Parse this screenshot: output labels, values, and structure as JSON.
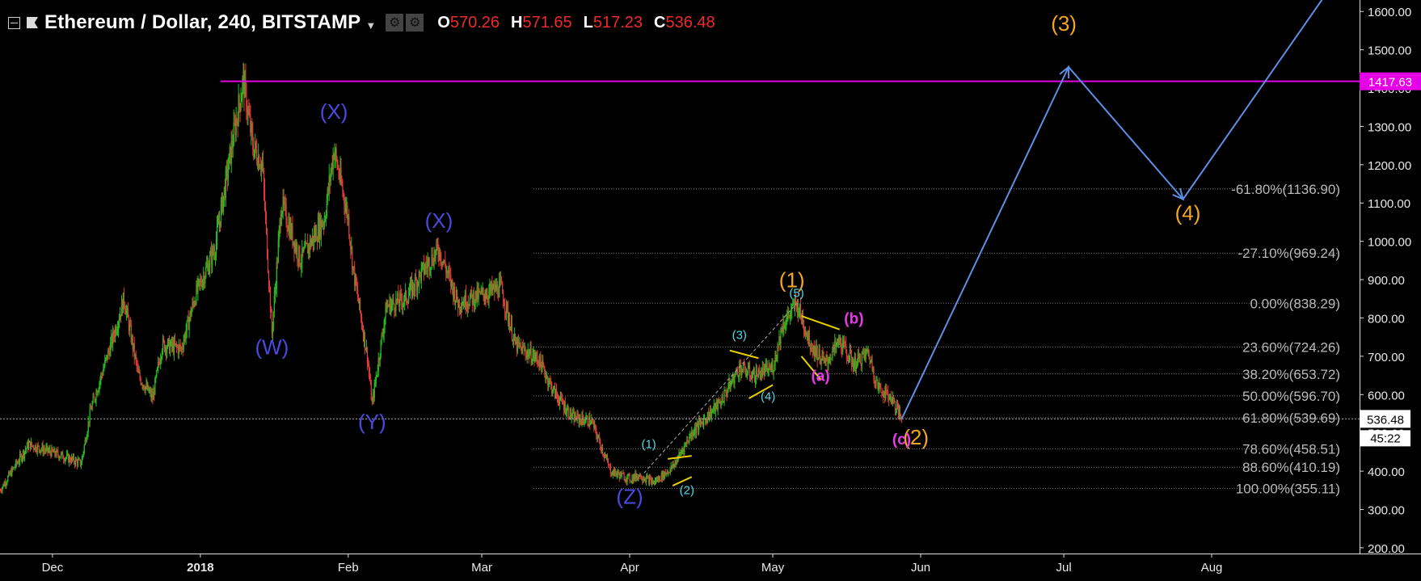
{
  "header": {
    "title": "Ethereum / Dollar, 240, BITSTAMP",
    "ohlc": [
      {
        "key": "O",
        "value": "570.26"
      },
      {
        "key": "H",
        "value": "571.65"
      },
      {
        "key": "L",
        "value": "517.23"
      },
      {
        "key": "C",
        "value": "536.48"
      }
    ]
  },
  "colors": {
    "background": "#000000",
    "up_candle": "#22c11d",
    "down_candle": "#e23a3a",
    "resistance": "#e600e6",
    "projection": "#5d8fe6",
    "wxy_labels": "#4a4ae0",
    "primary_wave": "#f5a623",
    "minor_wave": "#55d8ea",
    "abc_wave": "#e63ae6",
    "triangle": "#e8d000",
    "fib_text": "#b9b9b9"
  },
  "chart_data": {
    "type": "candlestick",
    "symbol": "Ethereum / Dollar",
    "interval": "240",
    "exchange": "BITSTAMP",
    "y_axis": {
      "side": "right",
      "ticks": [
        "200.00",
        "300.00",
        "400.00",
        "500.00",
        "600.00",
        "700.00",
        "800.00",
        "900.00",
        "1000.00",
        "1100.00",
        "1200.00",
        "1300.00",
        "1400.00",
        "1500.00",
        "1600.00"
      ],
      "range": [
        185,
        1630
      ]
    },
    "x_axis": {
      "ticks": [
        {
          "label": "Dec",
          "date": "2017-12-01"
        },
        {
          "label": "2018",
          "date": "2018-01-01"
        },
        {
          "label": "Feb",
          "date": "2018-02-01"
        },
        {
          "label": "Mar",
          "date": "2018-03-01"
        },
        {
          "label": "Apr",
          "date": "2018-04-01"
        },
        {
          "label": "May",
          "date": "2018-05-01"
        },
        {
          "label": "Jun",
          "date": "2018-06-01"
        },
        {
          "label": "Jul",
          "date": "2018-07-01"
        },
        {
          "label": "Aug",
          "date": "2018-08-01"
        }
      ],
      "range": [
        "2017-11-20",
        "2018-09-01"
      ]
    },
    "price_path": [
      [
        "2017-11-20",
        350
      ],
      [
        "2017-11-26",
        470
      ],
      [
        "2017-12-03",
        440
      ],
      [
        "2017-12-07",
        420
      ],
      [
        "2017-12-09",
        560
      ],
      [
        "2017-12-13",
        720
      ],
      [
        "2017-12-16",
        850
      ],
      [
        "2017-12-19",
        650
      ],
      [
        "2017-12-22",
        590
      ],
      [
        "2017-12-24",
        730
      ],
      [
        "2017-12-28",
        720
      ],
      [
        "2017-12-31",
        860
      ],
      [
        "2018-01-04",
        980
      ],
      [
        "2018-01-08",
        1280
      ],
      [
        "2018-01-10",
        1420
      ],
      [
        "2018-01-12",
        1250
      ],
      [
        "2018-01-14",
        1200
      ],
      [
        "2018-01-16",
        760
      ],
      [
        "2018-01-18",
        1100
      ],
      [
        "2018-01-22",
        950
      ],
      [
        "2018-01-27",
        1060
      ],
      [
        "2018-01-29",
        1240
      ],
      [
        "2018-02-01",
        1060
      ],
      [
        "2018-02-02",
        930
      ],
      [
        "2018-02-05",
        700
      ],
      [
        "2018-02-06",
        575
      ],
      [
        "2018-02-09",
        830
      ],
      [
        "2018-02-13",
        850
      ],
      [
        "2018-02-17",
        930
      ],
      [
        "2018-02-20",
        980
      ],
      [
        "2018-02-24",
        840
      ],
      [
        "2018-03-01",
        860
      ],
      [
        "2018-03-05",
        880
      ],
      [
        "2018-03-08",
        730
      ],
      [
        "2018-03-13",
        690
      ],
      [
        "2018-03-16",
        610
      ],
      [
        "2018-03-20",
        540
      ],
      [
        "2018-03-24",
        530
      ],
      [
        "2018-03-28",
        400
      ],
      [
        "2018-04-01",
        380
      ],
      [
        "2018-04-03",
        390
      ],
      [
        "2018-04-06",
        370
      ],
      [
        "2018-04-10",
        410
      ],
      [
        "2018-04-14",
        500
      ],
      [
        "2018-04-20",
        580
      ],
      [
        "2018-04-24",
        670
      ],
      [
        "2018-04-27",
        650
      ],
      [
        "2018-05-01",
        670
      ],
      [
        "2018-05-03",
        780
      ],
      [
        "2018-05-06",
        838
      ],
      [
        "2018-05-09",
        730
      ],
      [
        "2018-05-12",
        680
      ],
      [
        "2018-05-15",
        740
      ],
      [
        "2018-05-18",
        680
      ],
      [
        "2018-05-21",
        710
      ],
      [
        "2018-05-23",
        620
      ],
      [
        "2018-05-26",
        590
      ],
      [
        "2018-05-28",
        536
      ]
    ],
    "horizontal_lines": [
      {
        "price": 1417.63,
        "label": "1417.63",
        "color": "#e600e6"
      },
      {
        "price": 536.48,
        "label": "536.48",
        "sublabel": "45:22",
        "style": "dotted"
      }
    ],
    "fibonacci_levels": [
      {
        "label": "-61.80%(1136.90)",
        "price": 1136.9
      },
      {
        "label": "-27.10%(969.24)",
        "price": 969.24
      },
      {
        "label": "0.00%(838.29)",
        "price": 838.29
      },
      {
        "label": "23.60%(724.26)",
        "price": 724.26
      },
      {
        "label": "38.20%(653.72)",
        "price": 653.72
      },
      {
        "label": "50.00%(596.70)",
        "price": 596.7
      },
      {
        "label": "61.80%(539.69)",
        "price": 539.69
      },
      {
        "label": "78.60%(458.51)",
        "price": 458.51
      },
      {
        "label": "88.60%(410.19)",
        "price": 410.19
      },
      {
        "label": "100.00%(355.11)",
        "price": 355.11
      }
    ],
    "wave_labels": [
      {
        "text": "(W)",
        "date": "2018-01-16",
        "price": 705,
        "group": "wxy"
      },
      {
        "text": "(X)",
        "date": "2018-01-29",
        "price": 1320,
        "group": "wxy"
      },
      {
        "text": "(Y)",
        "date": "2018-02-06",
        "price": 510,
        "group": "wxy"
      },
      {
        "text": "(X)",
        "date": "2018-02-20",
        "price": 1035,
        "group": "wxy"
      },
      {
        "text": "(Z)",
        "date": "2018-04-01",
        "price": 315,
        "group": "wxy"
      },
      {
        "text": "(1)",
        "date": "2018-05-05",
        "price": 880,
        "group": "primary"
      },
      {
        "text": "(2)",
        "date": "2018-05-31",
        "price": 470,
        "group": "primary"
      },
      {
        "text": "(3)",
        "date": "2018-07-01",
        "price": 1550,
        "group": "primary"
      },
      {
        "text": "(4)",
        "date": "2018-07-27",
        "price": 1055,
        "group": "primary"
      },
      {
        "text": "(1)",
        "date": "2018-04-05",
        "price": 460,
        "group": "minor"
      },
      {
        "text": "(2)",
        "date": "2018-04-13",
        "price": 340,
        "group": "minor"
      },
      {
        "text": "(3)",
        "date": "2018-04-24",
        "price": 745,
        "group": "minor"
      },
      {
        "text": "(4)",
        "date": "2018-04-30",
        "price": 585,
        "group": "minor"
      },
      {
        "text": "(5)",
        "date": "2018-05-06",
        "price": 855,
        "group": "minor"
      },
      {
        "text": "(a)",
        "date": "2018-05-11",
        "price": 635,
        "group": "abc"
      },
      {
        "text": "(b)",
        "date": "2018-05-18",
        "price": 785,
        "group": "abc"
      },
      {
        "text": "(c)",
        "date": "2018-05-28",
        "price": 470,
        "group": "abc"
      }
    ],
    "projection_path": [
      [
        "2018-05-28",
        536
      ],
      [
        "2018-07-02",
        1455
      ],
      [
        "2018-07-26",
        1110
      ],
      [
        "2018-08-28",
        1700
      ]
    ]
  }
}
